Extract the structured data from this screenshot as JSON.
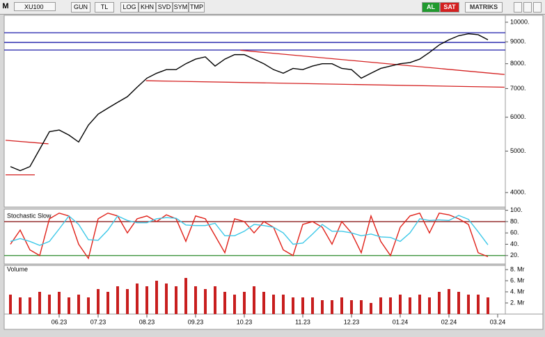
{
  "toolbar": {
    "menu": "M",
    "symbol": "XU100",
    "buttons": [
      "GUN",
      "TL",
      "LOG",
      "KHN",
      "SVD",
      "SYM",
      "TMP"
    ],
    "buy": "AL",
    "sell": "SAT",
    "brand": "MATRIKS"
  },
  "chart_data": [
    {
      "type": "line",
      "log": true,
      "color": "#000000",
      "values": [
        4600,
        4500,
        4600,
        5050,
        5550,
        5600,
        5450,
        5250,
        5750,
        6100,
        6300,
        6500,
        6700,
        7050,
        7400,
        7600,
        7750,
        7750,
        8000,
        8200,
        8300,
        7900,
        8200,
        8400,
        8400,
        8200,
        8000,
        7750,
        7600,
        7800,
        7750,
        7900,
        8000,
        8000,
        7800,
        7750,
        7400,
        7600,
        7800,
        7900,
        8000,
        8050,
        8200,
        8500,
        8850,
        9100,
        9300,
        9400,
        9350,
        9100,
        null
      ],
      "ylim": [
        3700,
        10380
      ],
      "yticks": [
        {
          "value": 4000,
          "label": "4000."
        },
        {
          "value": 5000,
          "label": "5000."
        },
        {
          "value": 6000,
          "label": "6000."
        },
        {
          "value": 7000,
          "label": "7000."
        },
        {
          "value": 8000,
          "label": "8000."
        },
        {
          "value": 9000,
          "label": "9000."
        },
        {
          "value": 10000,
          "label": "10000."
        }
      ],
      "levels": [
        9450,
        8970,
        8610
      ],
      "level_color": "#1a1aa8",
      "trendlines": [
        {
          "x": [
            -0.5,
            3.9
          ],
          "y": [
            5300,
            5200
          ]
        },
        {
          "x": [
            -0.5,
            2.5
          ],
          "y": [
            4400,
            4400
          ]
        },
        {
          "x": [
            13.9,
            50.7
          ],
          "y": [
            7300,
            7050
          ]
        },
        {
          "x": [
            23.6,
            50.7
          ],
          "y": [
            8600,
            7550
          ]
        }
      ],
      "trend_color": "#d42020"
    },
    {
      "type": "line",
      "title": "Stochastic Slow",
      "series": [
        {
          "name": "%K",
          "color": "#e02018",
          "values": [
            40,
            65,
            30,
            20,
            85,
            95,
            90,
            40,
            15,
            85,
            95,
            90,
            60,
            85,
            90,
            80,
            92,
            85,
            45,
            90,
            85,
            55,
            25,
            85,
            80,
            60,
            80,
            70,
            30,
            20,
            75,
            80,
            70,
            40,
            80,
            60,
            25,
            90,
            45,
            20,
            70,
            90,
            95,
            60,
            95,
            92,
            85,
            75,
            25,
            18,
            null
          ]
        },
        {
          "name": "%D",
          "color": "#3cc8e8",
          "values": [
            45,
            50,
            45,
            38,
            45,
            67,
            90,
            75,
            48,
            47,
            65,
            90,
            82,
            78,
            78,
            85,
            87,
            86,
            74,
            73,
            73,
            77,
            55,
            55,
            63,
            75,
            73,
            70,
            60,
            40,
            42,
            58,
            75,
            63,
            63,
            60,
            55,
            58,
            53,
            52,
            45,
            60,
            85,
            82,
            83,
            82,
            91,
            84,
            62,
            39,
            null
          ]
        }
      ],
      "ylim": [
        5,
        102
      ],
      "yticks": [
        {
          "value": 20,
          "label": "20."
        },
        {
          "value": 40,
          "label": "40."
        },
        {
          "value": 60,
          "label": "60."
        },
        {
          "value": 80,
          "label": "80."
        },
        {
          "value": 100,
          "label": "100."
        }
      ],
      "levels": [
        {
          "value": 80,
          "color": "#8b1a1a"
        },
        {
          "value": 20,
          "color": "#2a8a2a"
        }
      ]
    },
    {
      "type": "bar",
      "title": "Volume",
      "color": "#c81e1e",
      "categories": [
        null,
        null,
        null,
        null,
        null,
        "06.23",
        null,
        null,
        null,
        "07.23",
        null,
        null,
        null,
        null,
        "08.23",
        null,
        null,
        null,
        null,
        "09.23",
        null,
        null,
        null,
        null,
        "10.23",
        null,
        null,
        null,
        null,
        null,
        "11.23",
        null,
        null,
        null,
        null,
        "12.23",
        null,
        null,
        null,
        null,
        "01.24",
        null,
        null,
        null,
        null,
        "02.24",
        null,
        null,
        null,
        null,
        "03.24"
      ],
      "values": [
        3.5,
        3,
        3,
        4,
        3.5,
        4,
        3,
        3.5,
        3,
        4.5,
        4,
        5,
        4.5,
        5.5,
        5,
        6,
        5.5,
        5,
        6.5,
        5,
        4.5,
        5,
        4,
        3.5,
        4,
        5,
        4,
        3.5,
        3.5,
        3,
        3,
        3,
        2.5,
        2.5,
        3,
        2.5,
        2.5,
        2,
        3,
        3,
        3.5,
        3,
        3.5,
        3,
        4,
        4.5,
        4,
        3.5,
        3.5,
        3,
        null
      ],
      "ylim": [
        0,
        8.75
      ],
      "yticks": [
        {
          "value": 2,
          "label": "2. Mr"
        },
        {
          "value": 4,
          "label": "4. Mr"
        },
        {
          "value": 6,
          "label": "6. Mr"
        },
        {
          "value": 8,
          "label": "8. Mr"
        }
      ]
    }
  ]
}
